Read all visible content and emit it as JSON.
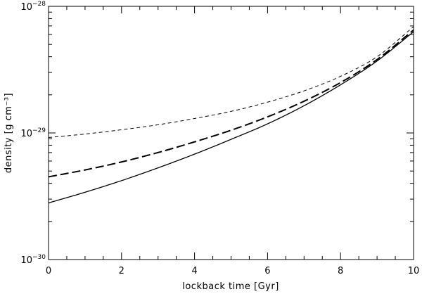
{
  "chart_data": {
    "type": "line",
    "title": "",
    "xlabel": "lockback time  [Gyr]",
    "ylabel": "density  [g cm⁻³]",
    "xlim": [
      0,
      10
    ],
    "ylim": [
      1e-30,
      1e-28
    ],
    "yscale": "log",
    "grid": false,
    "x_ticks": [
      0,
      2,
      4,
      6,
      8,
      10
    ],
    "x_tick_labels": [
      "0",
      "2",
      "4",
      "6",
      "8",
      "10"
    ],
    "y_ticks": [
      1e-30,
      1e-29,
      1e-28
    ],
    "y_tick_labels": [
      {
        "base": "10",
        "exp": "−30"
      },
      {
        "base": "10",
        "exp": "−29"
      },
      {
        "base": "10",
        "exp": "−28"
      }
    ],
    "series": [
      {
        "style": "solid",
        "color": "#000000",
        "x": [
          0,
          1,
          2,
          3,
          4,
          5,
          6,
          7,
          8,
          9,
          10
        ],
        "y": [
          2.8e-30,
          3.4e-30,
          4.2e-30,
          5.3e-30,
          6.8e-30,
          8.9e-30,
          1.18e-29,
          1.64e-29,
          2.4e-29,
          3.7e-29,
          6.3e-29
        ]
      },
      {
        "style": "long-dash",
        "color": "#000000",
        "x": [
          0,
          1,
          2,
          3,
          4,
          5,
          6,
          7,
          8,
          9,
          10
        ],
        "y": [
          4.5e-30,
          5.1e-30,
          5.9e-30,
          7e-30,
          8.5e-30,
          1.05e-29,
          1.34e-29,
          1.78e-29,
          2.5e-29,
          3.8e-29,
          6.5e-29
        ]
      },
      {
        "style": "short-dash",
        "color": "#000000",
        "x": [
          0,
          1,
          2,
          3,
          4,
          5,
          6,
          7,
          8,
          9,
          10
        ],
        "y": [
          9.2e-30,
          9.8e-30,
          1.06e-29,
          1.16e-29,
          1.3e-29,
          1.48e-29,
          1.75e-29,
          2.15e-29,
          2.8e-29,
          4e-29,
          6.9e-29
        ]
      }
    ]
  }
}
